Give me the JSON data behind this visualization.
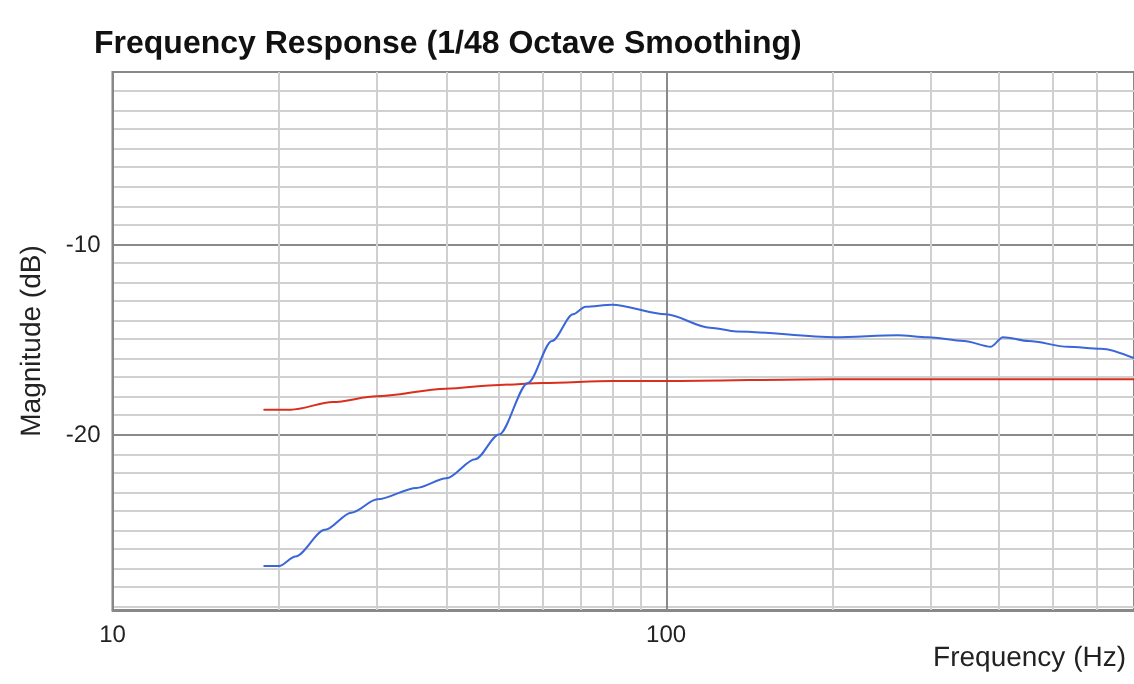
{
  "chart_data": {
    "type": "line",
    "title": "Frequency Response (1/48 Octave Smoothing)",
    "xlabel": "Frequency (Hz)",
    "ylabel": "Magnitude (dB)",
    "log": "x",
    "grid": true,
    "marker": "none",
    "line_style": "solid",
    "xlim": [
      10,
      700
    ],
    "xticks": [
      10,
      {
        "value": 20,
        "label": null
      },
      {
        "value": 30,
        "label": null
      },
      {
        "value": 40,
        "label": null
      },
      {
        "value": 50,
        "label": null
      },
      {
        "value": 60,
        "label": null
      },
      {
        "value": 70,
        "label": null
      },
      {
        "value": 80,
        "label": null
      },
      {
        "value": 90,
        "label": null
      },
      100,
      {
        "value": 200,
        "label": null
      },
      {
        "value": 300,
        "label": null
      },
      {
        "value": 400,
        "label": null
      },
      {
        "value": 500,
        "label": null
      },
      {
        "value": 600,
        "label": null
      }
    ],
    "ylim": [
      -29.2,
      -1
    ],
    "yticks": [
      {
        "value": -2,
        "label": null
      },
      {
        "value": -3,
        "label": null
      },
      {
        "value": -4,
        "label": null
      },
      {
        "value": -5,
        "label": null
      },
      {
        "value": -6,
        "label": null
      },
      {
        "value": -7,
        "label": null
      },
      {
        "value": -8,
        "label": null
      },
      {
        "value": -9,
        "label": null
      },
      -10,
      {
        "value": -11,
        "label": null
      },
      {
        "value": -12,
        "label": null
      },
      {
        "value": -13,
        "label": null
      },
      {
        "value": -14,
        "label": null
      },
      {
        "value": -15,
        "label": null
      },
      {
        "value": -16,
        "label": null
      },
      {
        "value": -17,
        "label": null
      },
      {
        "value": -18,
        "label": null
      },
      {
        "value": -19,
        "label": null
      },
      -20,
      {
        "value": -21,
        "label": null
      },
      {
        "value": -22,
        "label": null
      },
      {
        "value": -23,
        "label": null
      },
      {
        "value": -24,
        "label": null
      },
      {
        "value": -25,
        "label": null
      },
      {
        "value": -26,
        "label": null
      },
      {
        "value": -27,
        "label": null
      },
      {
        "value": -28,
        "label": null
      },
      {
        "value": -29,
        "label": null
      }
    ],
    "series": [
      {
        "color": "#d9301e",
        "x": [
          18.8,
          21,
          25,
          30,
          40,
          50,
          60,
          80,
          100,
          200,
          400,
          700
        ],
        "values": [
          -18.7,
          -18.7,
          -18.3,
          -18.0,
          -17.6,
          -17.4,
          -17.3,
          -17.2,
          -17.2,
          -17.1,
          -17.1,
          -17.1
        ]
      },
      {
        "color": "#3a66d9",
        "x": [
          18.8,
          20,
          21.4,
          24.2,
          27,
          30.1,
          35.4,
          40.1,
          45.2,
          49.9,
          56.3,
          62.2,
          67.9,
          71.5,
          79.9,
          99.9,
          120,
          134,
          202,
          262,
          297,
          345,
          386,
          406,
          452,
          531,
          610,
          700
        ],
        "values": [
          -26.9,
          -26.9,
          -26.4,
          -25.0,
          -24.1,
          -23.4,
          -22.8,
          -22.3,
          -21.3,
          -20.0,
          -17.3,
          -15.1,
          -13.7,
          -13.3,
          -13.2,
          -13.7,
          -14.4,
          -14.6,
          -14.9,
          -14.8,
          -14.9,
          -15.1,
          -15.4,
          -14.9,
          -15.1,
          -15.4,
          -15.5,
          -16.0
        ]
      }
    ]
  }
}
